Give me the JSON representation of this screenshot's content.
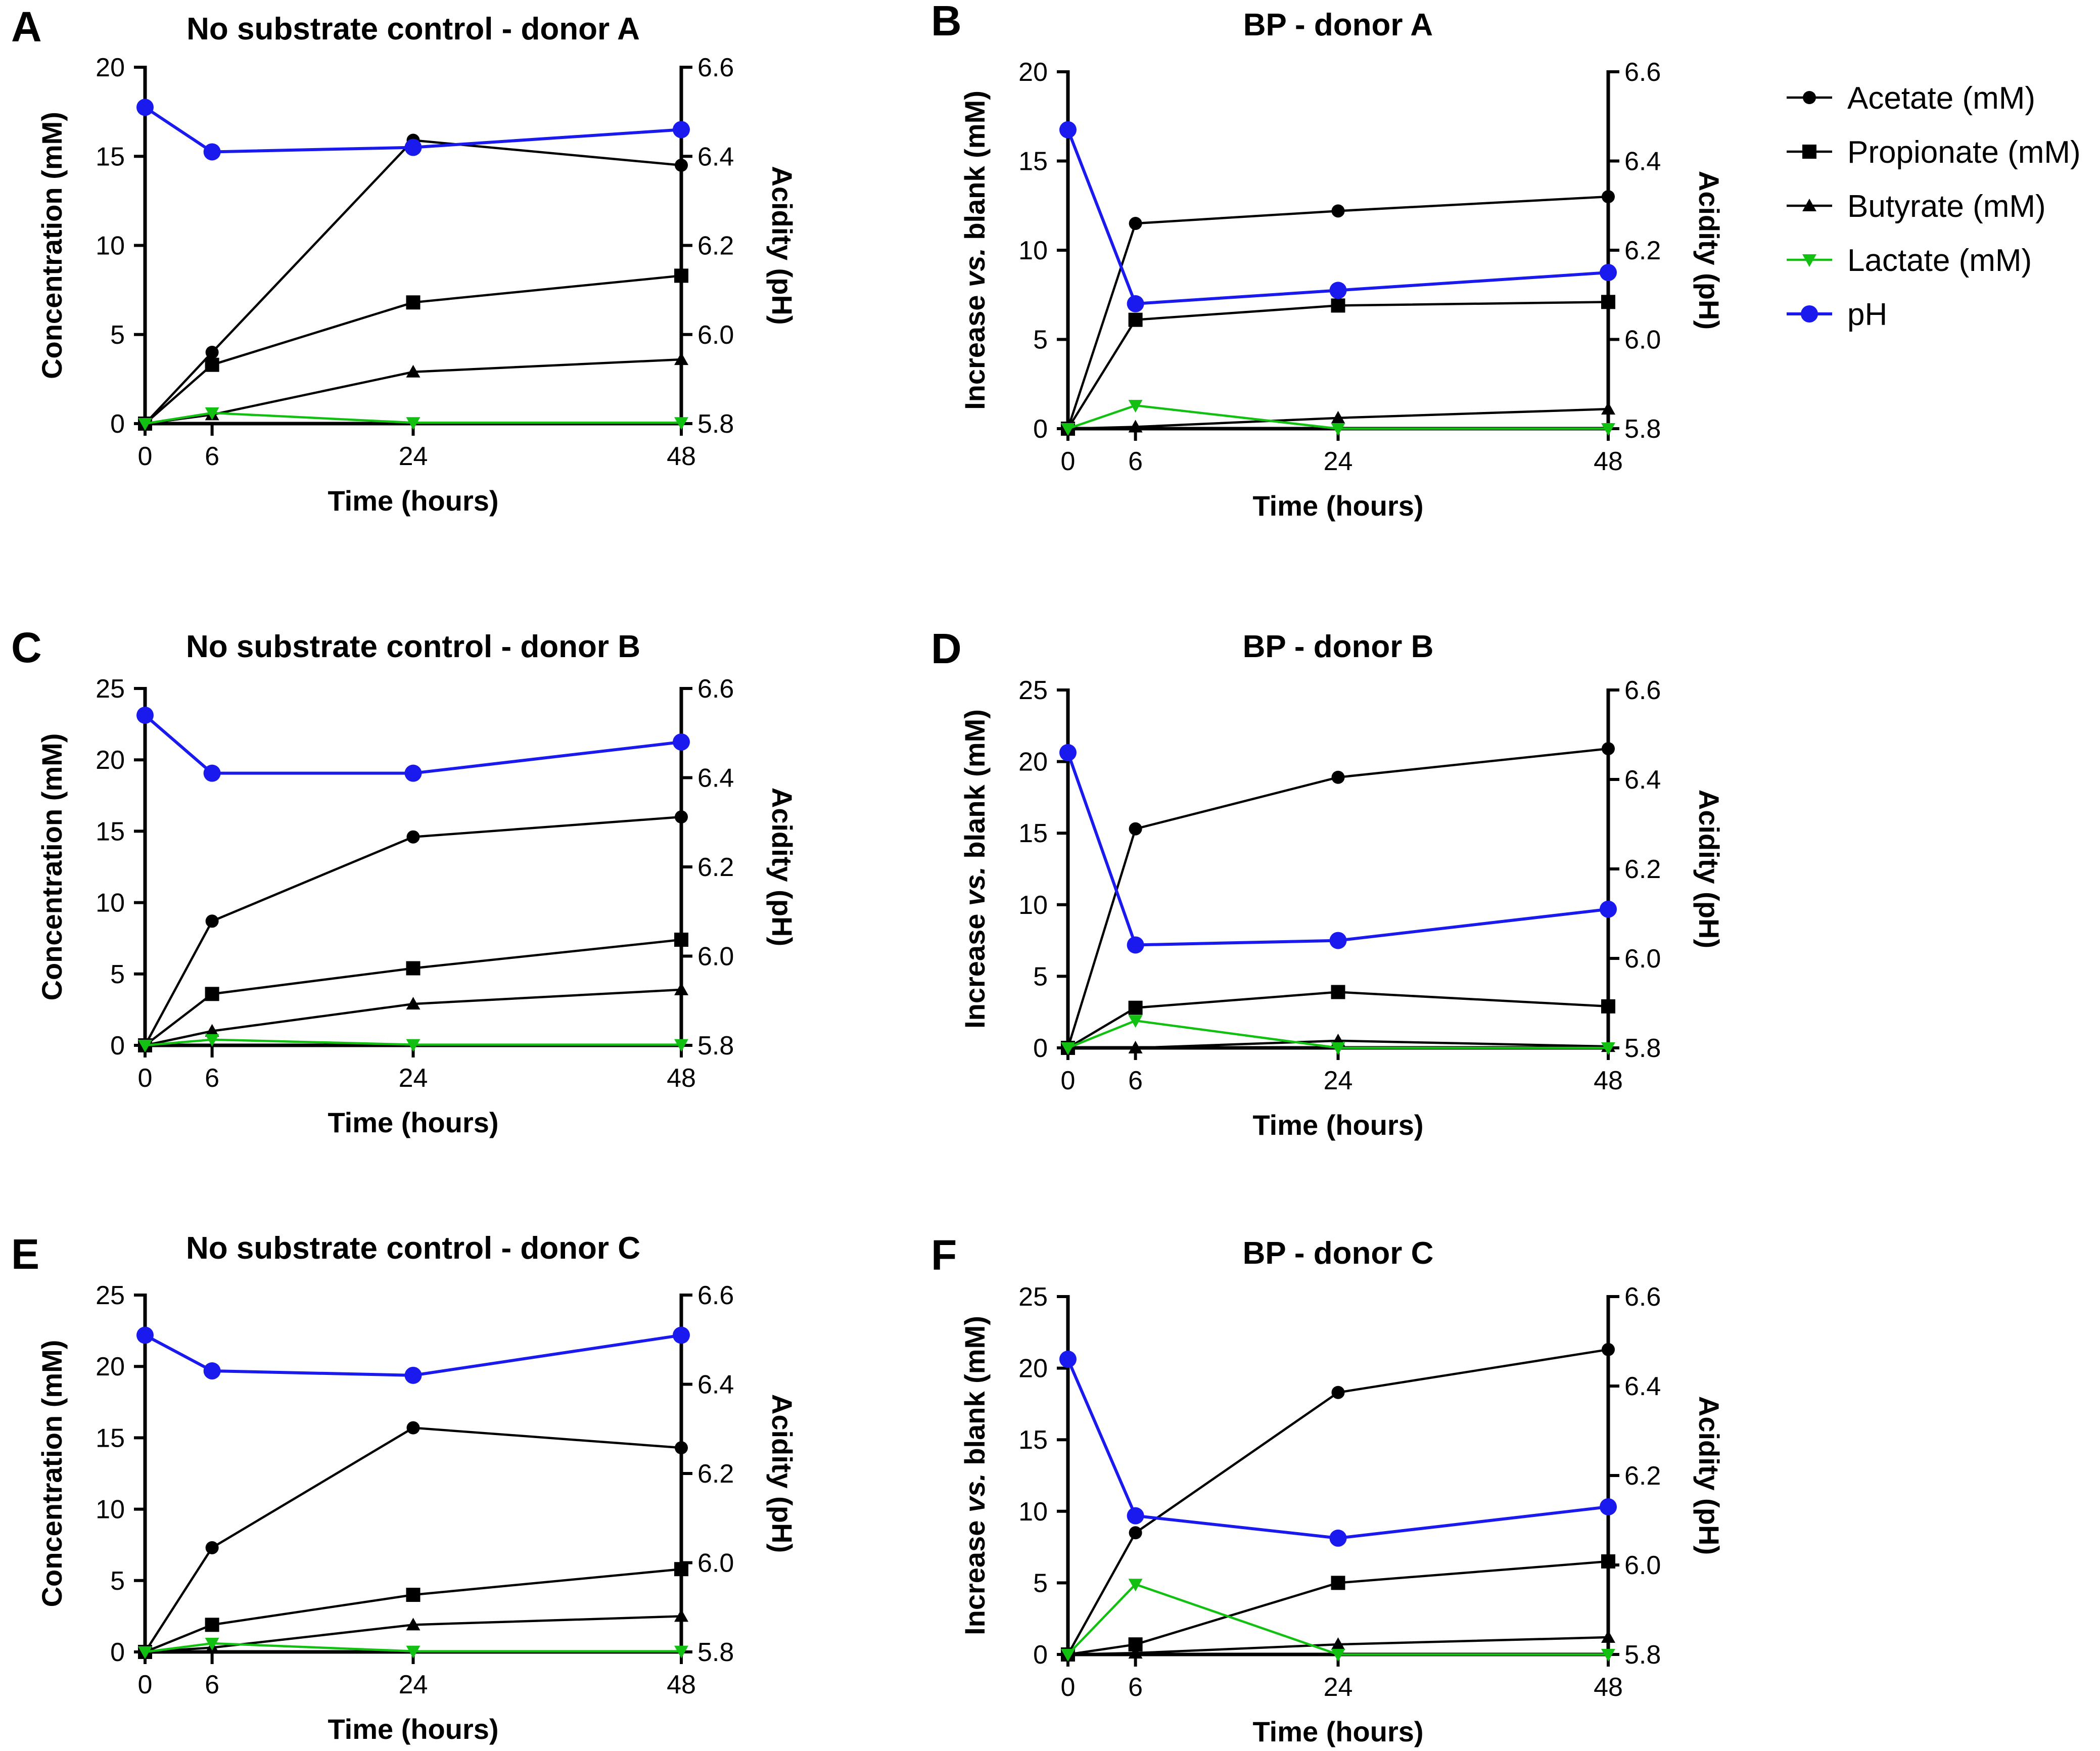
{
  "figure": {
    "legend": {
      "entries": [
        {
          "label": "Acetate (mM)",
          "color": "#000000",
          "marker": "circle"
        },
        {
          "label": "Propionate (mM)",
          "color": "#000000",
          "marker": "square"
        },
        {
          "label": "Butyrate (mM)",
          "color": "#000000",
          "marker": "triangle-up"
        },
        {
          "label": "Lactate (mM)",
          "color": "#11c011",
          "marker": "triangle-down"
        },
        {
          "label": "pH",
          "color": "#1a1aef",
          "marker": "circle-large"
        }
      ]
    }
  },
  "chart_data": [
    {
      "panel": "A",
      "type": "line",
      "title": "No substrate control - donor A",
      "xlabel": "Time (hours)",
      "ylabel": "Concentration (mM)",
      "y2label": "Acidity (pH)",
      "x": [
        0,
        6,
        24,
        48
      ],
      "xticks": [
        "0",
        "6",
        "24",
        "48"
      ],
      "xlim": [
        0,
        48
      ],
      "ylim": [
        0,
        20
      ],
      "yticks": [
        "0",
        "5",
        "10",
        "15",
        "20"
      ],
      "y2lim": [
        5.8,
        6.6
      ],
      "y2ticks": [
        "5.8",
        "6.0",
        "6.2",
        "6.4",
        "6.6"
      ],
      "series": [
        {
          "name": "Acetate (mM)",
          "axis": "left",
          "values": [
            0,
            4.0,
            15.9,
            14.5
          ]
        },
        {
          "name": "Propionate (mM)",
          "axis": "left",
          "values": [
            0,
            3.3,
            6.8,
            8.3
          ]
        },
        {
          "name": "Butyrate (mM)",
          "axis": "left",
          "values": [
            0,
            0.5,
            2.9,
            3.6
          ]
        },
        {
          "name": "Lactate (mM)",
          "axis": "left",
          "values": [
            0,
            0.6,
            0.05,
            0.05
          ]
        },
        {
          "name": "pH",
          "axis": "right",
          "values": [
            6.51,
            6.41,
            6.42,
            6.46
          ]
        }
      ]
    },
    {
      "panel": "B",
      "type": "line",
      "title": "BP - donor A",
      "xlabel": "Time (hours)",
      "ylabel": "Increase vs. blank (mM)",
      "y2label": "Acidity (pH)",
      "x": [
        0,
        6,
        24,
        48
      ],
      "xticks": [
        "0",
        "6",
        "24",
        "48"
      ],
      "xlim": [
        0,
        48
      ],
      "ylim": [
        0,
        20
      ],
      "yticks": [
        "0",
        "5",
        "10",
        "15",
        "20"
      ],
      "y2lim": [
        5.8,
        6.6
      ],
      "y2ticks": [
        "5.8",
        "6.0",
        "6.2",
        "6.4",
        "6.6"
      ],
      "series": [
        {
          "name": "Acetate (mM)",
          "axis": "left",
          "values": [
            0,
            11.5,
            12.2,
            13.0
          ]
        },
        {
          "name": "Propionate (mM)",
          "axis": "left",
          "values": [
            0,
            6.1,
            6.9,
            7.1
          ]
        },
        {
          "name": "Butyrate (mM)",
          "axis": "left",
          "values": [
            0,
            0.1,
            0.6,
            1.1
          ]
        },
        {
          "name": "Lactate (mM)",
          "axis": "left",
          "values": [
            0,
            1.3,
            0.0,
            0.0
          ]
        },
        {
          "name": "pH",
          "axis": "right",
          "values": [
            6.47,
            6.08,
            6.11,
            6.15
          ]
        }
      ]
    },
    {
      "panel": "C",
      "type": "line",
      "title": "No substrate control - donor B",
      "xlabel": "Time (hours)",
      "ylabel": "Concentration (mM)",
      "y2label": "Acidity (pH)",
      "x": [
        0,
        6,
        24,
        48
      ],
      "xticks": [
        "0",
        "6",
        "24",
        "48"
      ],
      "xlim": [
        0,
        48
      ],
      "ylim": [
        0,
        25
      ],
      "yticks": [
        "0",
        "5",
        "10",
        "15",
        "20",
        "25"
      ],
      "y2lim": [
        5.8,
        6.6
      ],
      "y2ticks": [
        "5.8",
        "6.0",
        "6.2",
        "6.4",
        "6.6"
      ],
      "series": [
        {
          "name": "Acetate (mM)",
          "axis": "left",
          "values": [
            0,
            8.7,
            14.6,
            16.0
          ]
        },
        {
          "name": "Propionate (mM)",
          "axis": "left",
          "values": [
            0,
            3.6,
            5.4,
            7.4
          ]
        },
        {
          "name": "Butyrate (mM)",
          "axis": "left",
          "values": [
            0,
            1.0,
            2.9,
            3.9
          ]
        },
        {
          "name": "Lactate (mM)",
          "axis": "left",
          "values": [
            0,
            0.4,
            0.05,
            0.05
          ]
        },
        {
          "name": "pH",
          "axis": "right",
          "values": [
            6.54,
            6.41,
            6.41,
            6.48
          ]
        }
      ]
    },
    {
      "panel": "D",
      "type": "line",
      "title": "BP - donor B",
      "xlabel": "Time (hours)",
      "ylabel": "Increase vs. blank (mM)",
      "y2label": "Acidity (pH)",
      "x": [
        0,
        6,
        24,
        48
      ],
      "xticks": [
        "0",
        "6",
        "24",
        "48"
      ],
      "xlim": [
        0,
        48
      ],
      "ylim": [
        0,
        25
      ],
      "yticks": [
        "0",
        "5",
        "10",
        "15",
        "20",
        "25"
      ],
      "y2lim": [
        5.8,
        6.6
      ],
      "y2ticks": [
        "5.8",
        "6.0",
        "6.2",
        "6.4",
        "6.6"
      ],
      "series": [
        {
          "name": "Acetate (mM)",
          "axis": "left",
          "values": [
            0,
            15.3,
            18.9,
            20.9
          ]
        },
        {
          "name": "Propionate (mM)",
          "axis": "left",
          "values": [
            0,
            2.8,
            3.9,
            2.9
          ]
        },
        {
          "name": "Butyrate (mM)",
          "axis": "left",
          "values": [
            0,
            0.0,
            0.5,
            0.1
          ]
        },
        {
          "name": "Lactate (mM)",
          "axis": "left",
          "values": [
            0,
            1.9,
            0.0,
            0.0
          ]
        },
        {
          "name": "pH",
          "axis": "right",
          "values": [
            6.46,
            6.03,
            6.04,
            6.11
          ]
        }
      ]
    },
    {
      "panel": "E",
      "type": "line",
      "title": "No substrate control - donor C",
      "xlabel": "Time (hours)",
      "ylabel": "Concentration (mM)",
      "y2label": "Acidity (pH)",
      "x": [
        0,
        6,
        24,
        48
      ],
      "xticks": [
        "0",
        "6",
        "24",
        "48"
      ],
      "xlim": [
        0,
        48
      ],
      "ylim": [
        0,
        25
      ],
      "yticks": [
        "0",
        "5",
        "10",
        "15",
        "20",
        "25"
      ],
      "y2lim": [
        5.8,
        6.6
      ],
      "y2ticks": [
        "5.8",
        "6.0",
        "6.2",
        "6.4",
        "6.6"
      ],
      "series": [
        {
          "name": "Acetate (mM)",
          "axis": "left",
          "values": [
            0,
            7.3,
            15.7,
            14.3
          ]
        },
        {
          "name": "Propionate (mM)",
          "axis": "left",
          "values": [
            0,
            1.9,
            4.0,
            5.8
          ]
        },
        {
          "name": "Butyrate (mM)",
          "axis": "left",
          "values": [
            0,
            0.3,
            1.9,
            2.5
          ]
        },
        {
          "name": "Lactate (mM)",
          "axis": "left",
          "values": [
            0,
            0.6,
            0.05,
            0.05
          ]
        },
        {
          "name": "pH",
          "axis": "right",
          "values": [
            6.51,
            6.43,
            6.42,
            6.51
          ]
        }
      ]
    },
    {
      "panel": "F",
      "type": "line",
      "title": "BP - donor C",
      "xlabel": "Time (hours)",
      "ylabel": "Increase vs. blank (mM)",
      "y2label": "Acidity (pH)",
      "x": [
        0,
        6,
        24,
        48
      ],
      "xticks": [
        "0",
        "6",
        "24",
        "48"
      ],
      "xlim": [
        0,
        48
      ],
      "ylim": [
        0,
        25
      ],
      "yticks": [
        "0",
        "5",
        "10",
        "15",
        "20",
        "25"
      ],
      "y2lim": [
        5.8,
        6.6
      ],
      "y2ticks": [
        "5.8",
        "6.0",
        "6.2",
        "6.4",
        "6.6"
      ],
      "series": [
        {
          "name": "Acetate (mM)",
          "axis": "left",
          "values": [
            0,
            8.5,
            18.3,
            21.3
          ]
        },
        {
          "name": "Propionate (mM)",
          "axis": "left",
          "values": [
            0,
            0.7,
            5.0,
            6.5
          ]
        },
        {
          "name": "Butyrate (mM)",
          "axis": "left",
          "values": [
            0,
            0.1,
            0.7,
            1.2
          ]
        },
        {
          "name": "Lactate (mM)",
          "axis": "left",
          "values": [
            0,
            4.9,
            0.0,
            0.0
          ]
        },
        {
          "name": "pH",
          "axis": "right",
          "values": [
            6.46,
            6.11,
            6.06,
            6.13
          ]
        }
      ]
    }
  ]
}
